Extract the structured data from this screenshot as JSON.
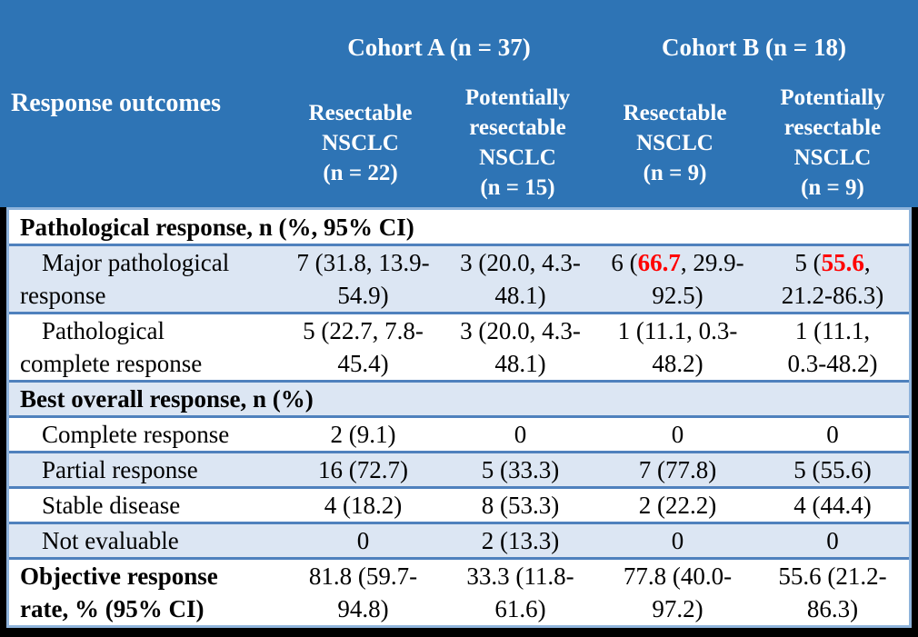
{
  "colors": {
    "header_bg": "#2e74b5",
    "header_text": "#ffffff",
    "row_alt_bg": "#dce6f3",
    "row_bg": "#ffffff",
    "row_separator": "#4f81bd",
    "outer_border": "#8fb4dc",
    "highlight_red": "#ff0000",
    "body_text": "#000000",
    "frame": "#000000"
  },
  "header": {
    "row_label": "Response outcomes",
    "cohorts": [
      {
        "label": "Cohort A (n = 37)"
      },
      {
        "label": "Cohort B (n = 18)"
      }
    ],
    "columns": [
      {
        "label": "Resectable\nNSCLC\n(n = 22)"
      },
      {
        "label": "Potentially\nresectable\nNSCLC\n(n = 15)"
      },
      {
        "label": "Resectable\nNSCLC\n(n = 9)"
      },
      {
        "label": "Potentially\nresectable\nNSCLC\n(n = 9)"
      }
    ]
  },
  "rows": [
    {
      "type": "section",
      "label": "Pathological response, n (%, 95% CI)"
    },
    {
      "type": "data",
      "label": "Major pathological\nresponse",
      "values": [
        {
          "text": "7 (31.8, 13.9-\n54.9)"
        },
        {
          "text": "3 (20.0, 4.3-\n48.1)"
        },
        {
          "pre": "6 (",
          "highlight": "66.7",
          "post": ", 29.9-\n92.5)"
        },
        {
          "pre": "5 (",
          "highlight": "55.6",
          "post": ",\n21.2-86.3)"
        }
      ]
    },
    {
      "type": "data",
      "label": "Pathological\ncomplete response",
      "values": [
        {
          "text": "5 (22.7, 7.8-\n45.4)"
        },
        {
          "text": "3 (20.0, 4.3-\n48.1)"
        },
        {
          "text": "1 (11.1, 0.3-\n48.2)"
        },
        {
          "text": "1 (11.1,\n0.3-48.2)"
        }
      ]
    },
    {
      "type": "section",
      "label": "Best overall response, n (%)"
    },
    {
      "type": "data",
      "label": "Complete response",
      "values": [
        {
          "text": "2 (9.1)"
        },
        {
          "text": "0"
        },
        {
          "text": "0"
        },
        {
          "text": "0"
        }
      ]
    },
    {
      "type": "data",
      "label": "Partial response",
      "values": [
        {
          "text": "16 (72.7)"
        },
        {
          "text": "5 (33.3)"
        },
        {
          "text": "7 (77.8)"
        },
        {
          "text": "5 (55.6)"
        }
      ]
    },
    {
      "type": "data",
      "label": "Stable disease",
      "values": [
        {
          "text": "4 (18.2)"
        },
        {
          "text": "8 (53.3)"
        },
        {
          "text": "2 (22.2)"
        },
        {
          "text": "4 (44.4)"
        }
      ]
    },
    {
      "type": "data",
      "label": "Not evaluable",
      "values": [
        {
          "text": "0"
        },
        {
          "text": "2 (13.3)"
        },
        {
          "text": "0"
        },
        {
          "text": "0"
        }
      ]
    },
    {
      "type": "data",
      "label": "Objective response\nrate, % (95% CI)",
      "values": [
        {
          "text": "81.8 (59.7-\n94.8)"
        },
        {
          "text": "33.3 (11.8-\n61.6)"
        },
        {
          "text": "77.8 (40.0-\n97.2)"
        },
        {
          "text": "55.6 (21.2-\n86.3)"
        }
      ]
    }
  ]
}
